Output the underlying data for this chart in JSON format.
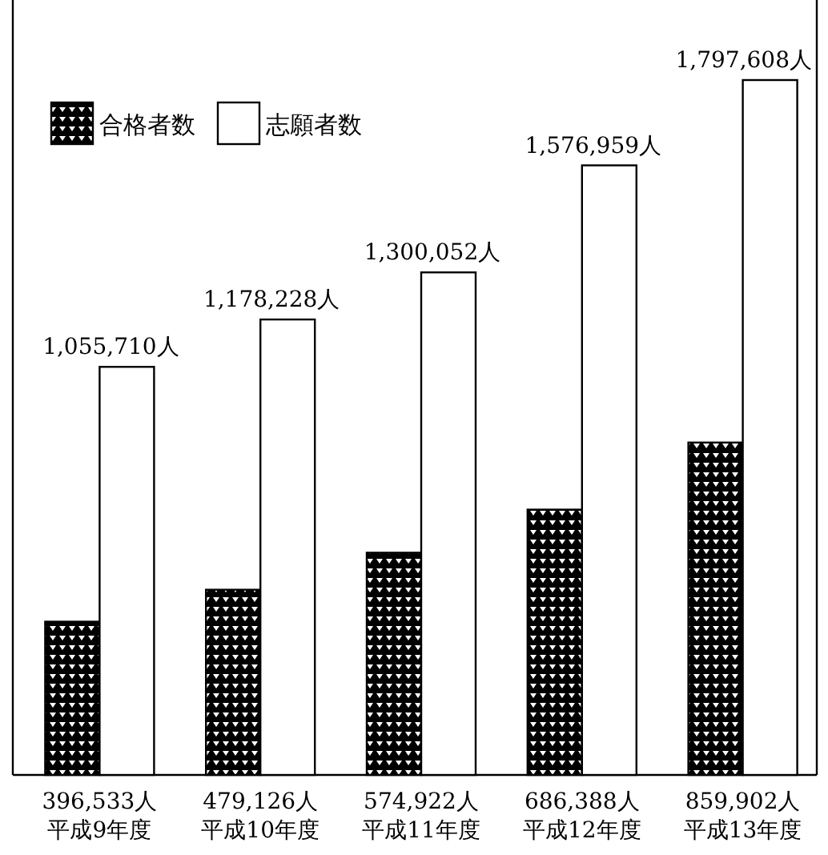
{
  "chart_data": {
    "type": "bar",
    "categories": [
      "平成9年度",
      "平成10年度",
      "平成11年度",
      "平成12年度",
      "平成13年度"
    ],
    "series": [
      {
        "name": "合格者数",
        "color": "#000000",
        "values": [
          396533,
          479126,
          574922,
          686388,
          859902
        ],
        "value_labels": [
          "396,533人",
          "479,126人",
          "574,922人",
          "686,388人",
          "859,902人"
        ]
      },
      {
        "name": "志願者数",
        "color": "#ffffff",
        "values": [
          1055710,
          1178228,
          1300052,
          1576959,
          1797608
        ],
        "value_labels": [
          "1,055,710人",
          "1,178,228人",
          "1,300,052人",
          "1,576,959人",
          "1,797,608人"
        ]
      }
    ],
    "legend": "top left"
  }
}
